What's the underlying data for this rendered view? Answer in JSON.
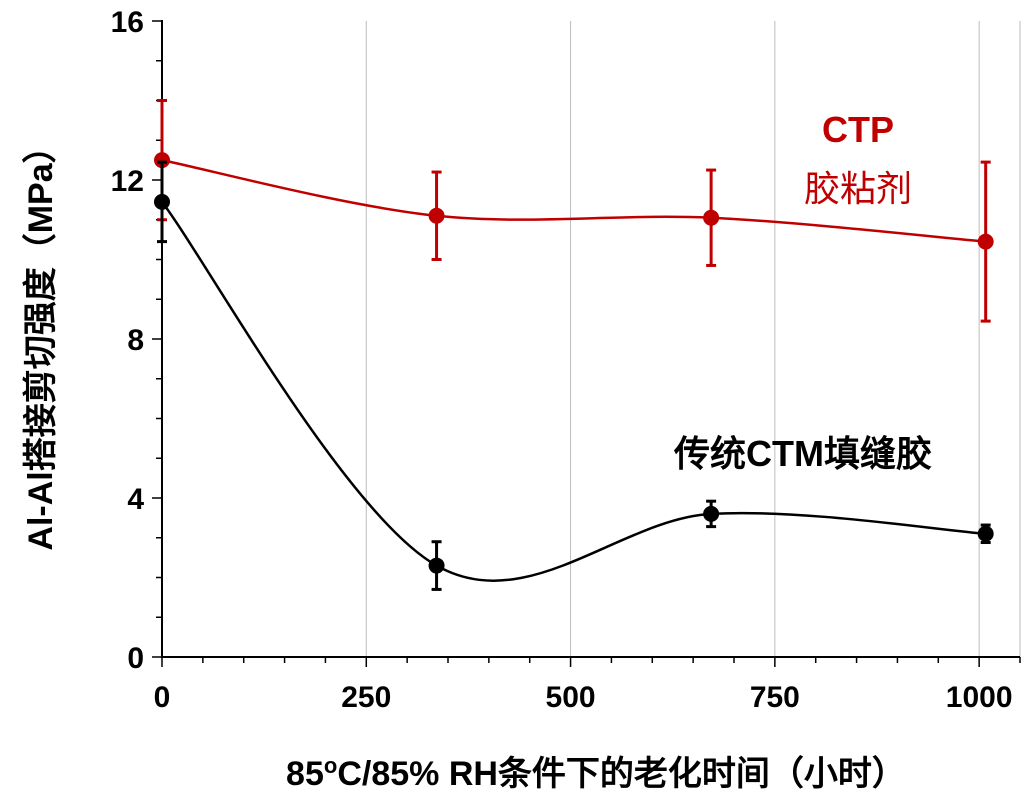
{
  "chart_data": {
    "type": "line",
    "xlabel": {
      "prefix": "85",
      "superscript": "o",
      "rest": "C/85% RH条件下的老化时间（小时）"
    },
    "ylabel": "Al-Al搭接剪切强度（MPa）",
    "xlim": [
      0,
      1050
    ],
    "ylim": [
      0,
      16
    ],
    "xticks": [
      0,
      250,
      500,
      750,
      1000
    ],
    "yticks": [
      0,
      4,
      8,
      12,
      16
    ],
    "xtick_labels": [
      "0",
      "250",
      "500",
      "750",
      "1000"
    ],
    "ytick_labels": [
      "0",
      "4",
      "8",
      "12",
      "16"
    ],
    "grid": "vertical",
    "series": [
      {
        "name": "CTP胶粘剂",
        "color": "#c00000",
        "x": [
          0,
          336,
          672,
          1008
        ],
        "y": [
          12.5,
          11.1,
          11.05,
          10.45
        ],
        "yerr": [
          1.5,
          1.1,
          1.2,
          2.0
        ]
      },
      {
        "name": "传统CTM填缝胶",
        "color": "#000000",
        "x": [
          0,
          336,
          672,
          1008
        ],
        "y": [
          11.45,
          2.3,
          3.6,
          3.1
        ],
        "yerr": [
          1.0,
          0.6,
          0.32,
          0.22
        ]
      }
    ],
    "annotations": [
      {
        "text": "CTP",
        "color": "#c00000"
      },
      {
        "text": "胶粘剂",
        "color": "#c00000"
      },
      {
        "text": "传统CTM填缝胶",
        "color": "#000000"
      }
    ]
  }
}
